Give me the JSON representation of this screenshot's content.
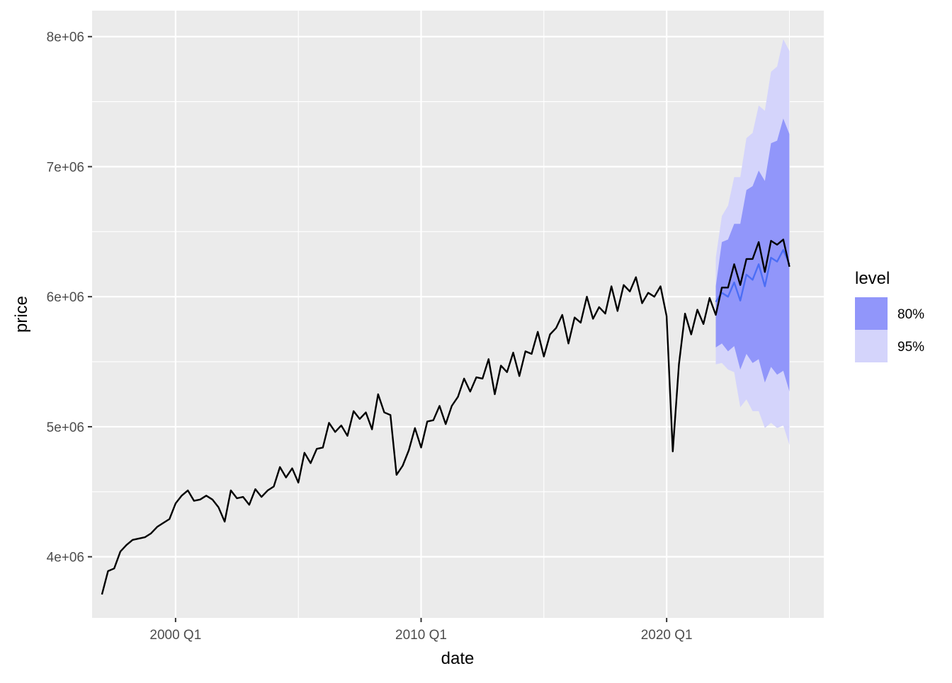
{
  "chart_data": {
    "type": "line",
    "xlabel": "date",
    "ylabel": "price",
    "xlim": [
      1996.6,
      2026.4
    ],
    "ylim": [
      3530000,
      8200000
    ],
    "x_ticks": [
      {
        "value": 2000.0,
        "label": "2000 Q1"
      },
      {
        "value": 2010.0,
        "label": "2010 Q1"
      },
      {
        "value": 2020.0,
        "label": "2020 Q1"
      }
    ],
    "x_minor_ticks": [
      2005.0,
      2015.0,
      2025.0
    ],
    "y_ticks": [
      {
        "value": 4000000,
        "label": "4e+06"
      },
      {
        "value": 5000000,
        "label": "5e+06"
      },
      {
        "value": 6000000,
        "label": "6e+06"
      },
      {
        "value": 7000000,
        "label": "7e+06"
      },
      {
        "value": 8000000,
        "label": "8e+06"
      }
    ],
    "y_minor_ticks": [
      4500000,
      5500000,
      6500000,
      7500000
    ],
    "grid": true,
    "legend": {
      "title": "level",
      "placement": "right",
      "entries": [
        {
          "label": "80%",
          "color": "#9196fa"
        },
        {
          "label": "95%",
          "color": "#d4d4fb"
        }
      ]
    },
    "colors": {
      "panel": "#ebebeb",
      "grid": "#ffffff",
      "observed_line": "#000000",
      "forecast_line": "#4c6ef5",
      "band_80": "#9196fa",
      "band_95": "#d4d4fb"
    },
    "series": [
      {
        "role": "observed",
        "x": [
          "1997 Q1",
          "1997 Q2",
          "1997 Q3",
          "1997 Q4",
          "1998 Q1",
          "1998 Q2",
          "1998 Q3",
          "1998 Q4",
          "1999 Q1",
          "1999 Q2",
          "1999 Q3",
          "1999 Q4",
          "2000 Q1",
          "2000 Q2",
          "2000 Q3",
          "2000 Q4",
          "2001 Q1",
          "2001 Q2",
          "2001 Q3",
          "2001 Q4",
          "2002 Q1",
          "2002 Q2",
          "2002 Q3",
          "2002 Q4",
          "2003 Q1",
          "2003 Q2",
          "2003 Q3",
          "2003 Q4",
          "2004 Q1",
          "2004 Q2",
          "2004 Q3",
          "2004 Q4",
          "2005 Q1",
          "2005 Q2",
          "2005 Q3",
          "2005 Q4",
          "2006 Q1",
          "2006 Q2",
          "2006 Q3",
          "2006 Q4",
          "2007 Q1",
          "2007 Q2",
          "2007 Q3",
          "2007 Q4",
          "2008 Q1",
          "2008 Q2",
          "2008 Q3",
          "2008 Q4",
          "2009 Q1",
          "2009 Q2",
          "2009 Q3",
          "2009 Q4",
          "2010 Q1",
          "2010 Q2",
          "2010 Q3",
          "2010 Q4",
          "2011 Q1",
          "2011 Q2",
          "2011 Q3",
          "2011 Q4",
          "2012 Q1",
          "2012 Q2",
          "2012 Q3",
          "2012 Q4",
          "2013 Q1",
          "2013 Q2",
          "2013 Q3",
          "2013 Q4",
          "2014 Q1",
          "2014 Q2",
          "2014 Q3",
          "2014 Q4",
          "2015 Q1",
          "2015 Q2",
          "2015 Q3",
          "2015 Q4",
          "2016 Q1",
          "2016 Q2",
          "2016 Q3",
          "2016 Q4",
          "2017 Q1",
          "2017 Q2",
          "2017 Q3",
          "2017 Q4",
          "2018 Q1",
          "2018 Q2",
          "2018 Q3",
          "2018 Q4",
          "2019 Q1",
          "2019 Q2",
          "2019 Q3",
          "2019 Q4",
          "2020 Q1",
          "2020 Q2",
          "2020 Q3",
          "2020 Q4",
          "2021 Q1",
          "2021 Q2",
          "2021 Q3",
          "2021 Q4",
          "2022 Q1",
          "2022 Q2",
          "2022 Q3",
          "2022 Q4",
          "2023 Q1",
          "2023 Q2",
          "2023 Q3",
          "2023 Q4",
          "2024 Q1",
          "2024 Q2",
          "2024 Q3",
          "2024 Q4",
          "2025 Q1"
        ],
        "y": [
          3710000,
          3890000,
          3910000,
          4040000,
          4090000,
          4130000,
          4140000,
          4150000,
          4180000,
          4230000,
          4260000,
          4290000,
          4410000,
          4470000,
          4510000,
          4430000,
          4440000,
          4470000,
          4440000,
          4380000,
          4270000,
          4510000,
          4450000,
          4460000,
          4400000,
          4520000,
          4460000,
          4510000,
          4540000,
          4690000,
          4610000,
          4680000,
          4570000,
          4800000,
          4720000,
          4830000,
          4840000,
          5030000,
          4960000,
          5010000,
          4930000,
          5120000,
          5060000,
          5110000,
          4980000,
          5250000,
          5110000,
          5090000,
          4630000,
          4700000,
          4820000,
          4990000,
          4840000,
          5040000,
          5050000,
          5160000,
          5020000,
          5160000,
          5230000,
          5370000,
          5270000,
          5380000,
          5370000,
          5520000,
          5250000,
          5470000,
          5420000,
          5570000,
          5390000,
          5580000,
          5560000,
          5730000,
          5540000,
          5710000,
          5760000,
          5860000,
          5640000,
          5840000,
          5800000,
          6000000,
          5830000,
          5920000,
          5870000,
          6080000,
          5890000,
          6090000,
          6040000,
          6150000,
          5950000,
          6030000,
          6000000,
          6080000,
          5850000,
          4810000,
          5480000,
          5870000,
          5710000,
          5900000,
          5790000,
          5990000,
          5860000,
          6070000,
          6070000,
          6250000,
          6090000,
          6290000,
          6290000,
          6420000,
          6190000,
          6430000,
          6400000,
          6440000,
          6230000
        ]
      },
      {
        "role": "forecast",
        "x": [
          "2022 Q1",
          "2022 Q2",
          "2022 Q3",
          "2022 Q4",
          "2023 Q1",
          "2023 Q2",
          "2023 Q3",
          "2023 Q4",
          "2024 Q1",
          "2024 Q2",
          "2024 Q3",
          "2024 Q4",
          "2025 Q1"
        ],
        "y": [
          5960000,
          6030000,
          6000000,
          6110000,
          5970000,
          6170000,
          6130000,
          6250000,
          6080000,
          6300000,
          6270000,
          6360000,
          6250000
        ],
        "lo80": [
          5610000,
          5640000,
          5580000,
          5620000,
          5440000,
          5560000,
          5490000,
          5520000,
          5340000,
          5460000,
          5400000,
          5430000,
          5270000
        ],
        "hi80": [
          6080000,
          6420000,
          6440000,
          6560000,
          6560000,
          6820000,
          6850000,
          6970000,
          6890000,
          7180000,
          7200000,
          7370000,
          7250000
        ],
        "lo95": [
          5480000,
          5490000,
          5440000,
          5420000,
          5150000,
          5210000,
          5120000,
          5120000,
          4990000,
          5030000,
          4990000,
          5010000,
          4860000
        ],
        "hi95": [
          6300000,
          6620000,
          6700000,
          6920000,
          6920000,
          7220000,
          7260000,
          7470000,
          7430000,
          7730000,
          7770000,
          7980000,
          7890000
        ]
      }
    ]
  }
}
